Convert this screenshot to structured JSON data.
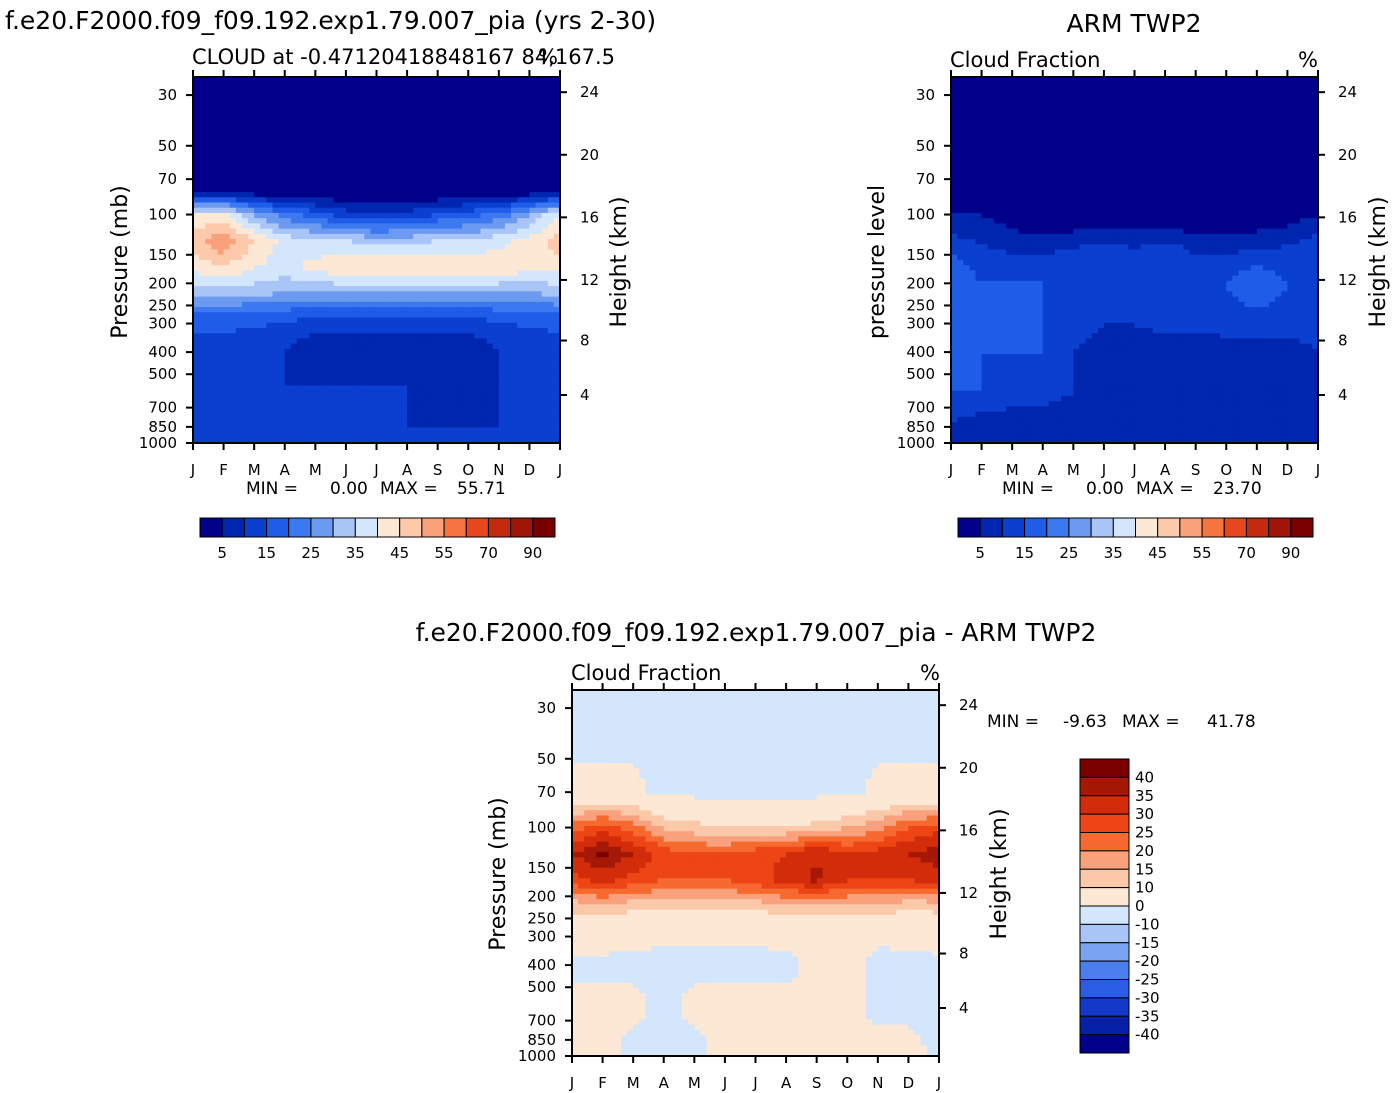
{
  "panels": [
    {
      "id": "model",
      "header": "f.e20.F2000.f09_f09.192.exp1.79.007_pia (yrs 2-30)",
      "subtitle_left": "CLOUD at -0.47120418848167 84,167.5",
      "subtitle_right": "%",
      "ylabel_left": "Pressure (mb)",
      "ylabel_right": "Height (km)",
      "stats": {
        "min_label": "MIN =",
        "min": "0.00",
        "max_label": "MAX =",
        "max": "55.71"
      }
    },
    {
      "id": "obs",
      "header": "ARM TWP2",
      "subtitle_left": "Cloud Fraction",
      "subtitle_right": "%",
      "ylabel_left": "pressure level",
      "ylabel_right": "Height (km)",
      "stats": {
        "min_label": "MIN =",
        "min": "0.00",
        "max_label": "MAX =",
        "max": "23.70"
      }
    },
    {
      "id": "diff",
      "header": "f.e20.F2000.f09_f09.192.exp1.79.007_pia - ARM TWP2",
      "subtitle_left": "Cloud Fraction",
      "subtitle_right": "%",
      "ylabel_left": "Pressure (mb)",
      "ylabel_right": "Height (km)",
      "stats": {
        "min_label": "MIN =",
        "min": "-9.63",
        "max_label": "MAX =",
        "max": "41.78"
      }
    }
  ],
  "chart_data": [
    {
      "type": "heatmap",
      "title": "CLOUD at -0.47120418848167 84,167.5",
      "x_ticks": [
        "J",
        "F",
        "M",
        "A",
        "M",
        "J",
        "J",
        "A",
        "S",
        "O",
        "N",
        "D",
        "J"
      ],
      "y_ticks_pressure": [
        30,
        50,
        70,
        100,
        150,
        200,
        250,
        300,
        400,
        500,
        700,
        850,
        1000
      ],
      "y_ticks_height_km": [
        24,
        20,
        16,
        12,
        8,
        4
      ],
      "ylabel": "Pressure (mb)",
      "ylabel_right": "Height (km)",
      "units": "%",
      "min": 0.0,
      "max": 55.71,
      "colorbar_levels": [
        5,
        10,
        15,
        20,
        25,
        30,
        35,
        40,
        45,
        50,
        55,
        60,
        70,
        80,
        90
      ],
      "colorbar_labels": [
        "5",
        "15",
        "25",
        "35",
        "45",
        "55",
        "70",
        "90"
      ],
      "colorbar_colors": [
        "#00008b",
        "#0026b0",
        "#0a3fd0",
        "#1f5de8",
        "#3c79f0",
        "#6c9af0",
        "#a9c5f7",
        "#d4e6fb",
        "#fde8d6",
        "#fcc9aa",
        "#f9a17a",
        "#f5743f",
        "#e8461c",
        "#c62a0e",
        "#a11408",
        "#7a0000"
      ],
      "series": [
        {
          "pressure_mb": 50,
          "values": [
            0,
            0,
            0,
            0,
            0,
            0,
            0,
            0,
            0,
            0,
            0,
            0,
            0
          ]
        },
        {
          "pressure_mb": 80,
          "values": [
            5,
            5,
            2,
            0,
            0,
            0,
            0,
            0,
            0,
            0,
            0,
            2,
            5
          ]
        },
        {
          "pressure_mb": 100,
          "values": [
            40,
            42,
            30,
            22,
            18,
            12,
            10,
            12,
            15,
            18,
            22,
            30,
            40
          ]
        },
        {
          "pressure_mb": 130,
          "values": [
            48,
            55,
            45,
            38,
            36,
            35,
            33,
            33,
            35,
            35,
            38,
            42,
            48
          ]
        },
        {
          "pressure_mb": 170,
          "values": [
            42,
            45,
            40,
            38,
            42,
            45,
            45,
            45,
            45,
            45,
            44,
            42,
            42
          ]
        },
        {
          "pressure_mb": 220,
          "values": [
            32,
            33,
            32,
            30,
            30,
            30,
            30,
            30,
            30,
            30,
            30,
            30,
            32
          ]
        },
        {
          "pressure_mb": 280,
          "values": [
            18,
            18,
            17,
            16,
            15,
            14,
            14,
            14,
            14,
            15,
            16,
            17,
            18
          ]
        },
        {
          "pressure_mb": 400,
          "values": [
            12,
            12,
            10,
            10,
            5,
            5,
            5,
            5,
            5,
            5,
            10,
            10,
            12
          ]
        },
        {
          "pressure_mb": 550,
          "values": [
            14,
            12,
            10,
            10,
            10,
            10,
            10,
            10,
            5,
            5,
            10,
            12,
            14
          ]
        },
        {
          "pressure_mb": 850,
          "values": [
            10,
            10,
            10,
            10,
            10,
            10,
            10,
            10,
            10,
            10,
            10,
            10,
            10
          ]
        }
      ]
    },
    {
      "type": "heatmap",
      "title": "Cloud Fraction",
      "x_ticks": [
        "J",
        "F",
        "M",
        "A",
        "M",
        "J",
        "J",
        "A",
        "S",
        "O",
        "N",
        "D",
        "J"
      ],
      "y_ticks_pressure": [
        30,
        50,
        70,
        100,
        150,
        200,
        250,
        300,
        400,
        500,
        700,
        850,
        1000
      ],
      "y_ticks_height_km": [
        24,
        20,
        16,
        12,
        8,
        4
      ],
      "ylabel": "pressure level",
      "ylabel_right": "Height (km)",
      "units": "%",
      "min": 0.0,
      "max": 23.7,
      "colorbar_levels": [
        5,
        10,
        15,
        20,
        25,
        30,
        35,
        40,
        45,
        50,
        55,
        60,
        70,
        80,
        90
      ],
      "colorbar_labels": [
        "5",
        "15",
        "25",
        "35",
        "45",
        "55",
        "70",
        "90"
      ],
      "colorbar_colors": [
        "#00008b",
        "#0026b0",
        "#0a3fd0",
        "#1f5de8",
        "#3c79f0",
        "#6c9af0",
        "#a9c5f7",
        "#d4e6fb",
        "#fde8d6",
        "#fcc9aa",
        "#f9a17a",
        "#f5743f",
        "#e8461c",
        "#c62a0e",
        "#a11408",
        "#7a0000"
      ],
      "series": [
        {
          "pressure_mb": 50,
          "values": [
            0,
            0,
            0,
            0,
            0,
            0,
            0,
            0,
            0,
            0,
            0,
            0,
            0
          ]
        },
        {
          "pressure_mb": 100,
          "values": [
            5,
            5,
            2,
            0,
            0,
            0,
            0,
            0,
            0,
            0,
            0,
            2,
            5
          ]
        },
        {
          "pressure_mb": 150,
          "values": [
            15,
            12,
            10,
            10,
            12,
            15,
            12,
            15,
            10,
            10,
            12,
            12,
            15
          ]
        },
        {
          "pressure_mb": 200,
          "values": [
            20,
            15,
            15,
            15,
            15,
            15,
            15,
            15,
            15,
            15,
            20,
            15,
            15
          ]
        },
        {
          "pressure_mb": 300,
          "values": [
            15,
            15,
            15,
            15,
            12,
            10,
            10,
            12,
            12,
            12,
            12,
            12,
            12
          ]
        },
        {
          "pressure_mb": 400,
          "values": [
            15,
            15,
            15,
            15,
            10,
            8,
            8,
            5,
            5,
            8,
            8,
            8,
            10
          ]
        },
        {
          "pressure_mb": 600,
          "values": [
            15,
            15,
            12,
            12,
            10,
            8,
            8,
            8,
            5,
            5,
            8,
            8,
            10
          ]
        },
        {
          "pressure_mb": 800,
          "values": [
            10,
            8,
            8,
            8,
            5,
            8,
            5,
            8,
            5,
            5,
            8,
            8,
            8
          ]
        },
        {
          "pressure_mb": 1000,
          "values": [
            5,
            5,
            5,
            5,
            5,
            5,
            5,
            5,
            5,
            5,
            5,
            5,
            5
          ]
        }
      ]
    },
    {
      "type": "heatmap",
      "title": "Cloud Fraction",
      "x_ticks": [
        "J",
        "F",
        "M",
        "A",
        "M",
        "J",
        "J",
        "A",
        "S",
        "O",
        "N",
        "D",
        "J"
      ],
      "y_ticks_pressure": [
        30,
        50,
        70,
        100,
        150,
        200,
        250,
        300,
        400,
        500,
        700,
        850,
        1000
      ],
      "y_ticks_height_km": [
        24,
        20,
        16,
        12,
        8,
        4
      ],
      "ylabel": "Pressure (mb)",
      "ylabel_right": "Height (km)",
      "units": "%",
      "min": -9.63,
      "max": 41.78,
      "colorbar_labels": [
        "40",
        "35",
        "30",
        "25",
        "20",
        "15",
        "10",
        "0",
        "-10",
        "-15",
        "-20",
        "-25",
        "-30",
        "-35",
        "-40"
      ],
      "colorbar_colors": [
        "#7a0000",
        "#a61806",
        "#d22c0a",
        "#ee4515",
        "#f6692f",
        "#f9a07d",
        "#fcc8aa",
        "#fde8d6",
        "#d4e6fb",
        "#a9c5f7",
        "#7aa3f2",
        "#4c7fee",
        "#2a5ce6",
        "#1438c8",
        "#0620a8",
        "#00008b"
      ],
      "series": [
        {
          "pressure_mb": 40,
          "values": [
            -2,
            -2,
            -2,
            -2,
            -2,
            -2,
            -2,
            -2,
            -2,
            -2,
            -2,
            -2,
            -2
          ]
        },
        {
          "pressure_mb": 70,
          "values": [
            2,
            2,
            2,
            -2,
            -2,
            -2,
            -2,
            -2,
            -2,
            -2,
            2,
            2,
            2
          ]
        },
        {
          "pressure_mb": 100,
          "values": [
            22,
            28,
            22,
            14,
            12,
            10,
            10,
            10,
            12,
            15,
            18,
            25,
            28
          ]
        },
        {
          "pressure_mb": 130,
          "values": [
            35,
            41,
            35,
            28,
            25,
            25,
            28,
            30,
            35,
            30,
            32,
            35,
            38
          ]
        },
        {
          "pressure_mb": 170,
          "values": [
            28,
            32,
            28,
            25,
            25,
            25,
            28,
            32,
            36,
            30,
            30,
            30,
            32
          ]
        },
        {
          "pressure_mb": 220,
          "values": [
            12,
            14,
            12,
            12,
            12,
            12,
            12,
            14,
            15,
            14,
            14,
            12,
            12
          ]
        },
        {
          "pressure_mb": 280,
          "values": [
            5,
            5,
            3,
            2,
            2,
            2,
            2,
            3,
            3,
            2,
            2,
            3,
            5
          ]
        },
        {
          "pressure_mb": 400,
          "values": [
            -2,
            -2,
            -2,
            -2,
            -2,
            -2,
            -2,
            -2,
            2,
            2,
            -2,
            -2,
            -2
          ]
        },
        {
          "pressure_mb": 600,
          "values": [
            2,
            2,
            2,
            -2,
            2,
            2,
            2,
            2,
            2,
            2,
            -2,
            -2,
            -2
          ]
        },
        {
          "pressure_mb": 900,
          "values": [
            2,
            2,
            -2,
            -2,
            -2,
            2,
            2,
            2,
            2,
            2,
            2,
            2,
            -2
          ]
        }
      ]
    }
  ]
}
